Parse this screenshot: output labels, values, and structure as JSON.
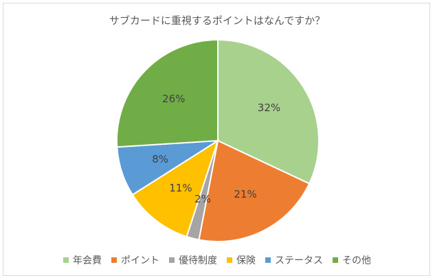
{
  "chart_data": {
    "type": "pie",
    "title": "サブカードに重視するポイントはなんですか？",
    "categories": [
      "年会費",
      "ポイント",
      "優待制度",
      "保険",
      "ステータス",
      "その他"
    ],
    "values": [
      32,
      21,
      2,
      11,
      8,
      26
    ],
    "data_labels": [
      "32%",
      "21%",
      "2%",
      "11%",
      "8%",
      "26%"
    ],
    "colors": [
      "#a9d18e",
      "#ed7d31",
      "#a5a5a5",
      "#ffc000",
      "#5b9bd5",
      "#70ad47"
    ],
    "legend_position": "bottom"
  }
}
